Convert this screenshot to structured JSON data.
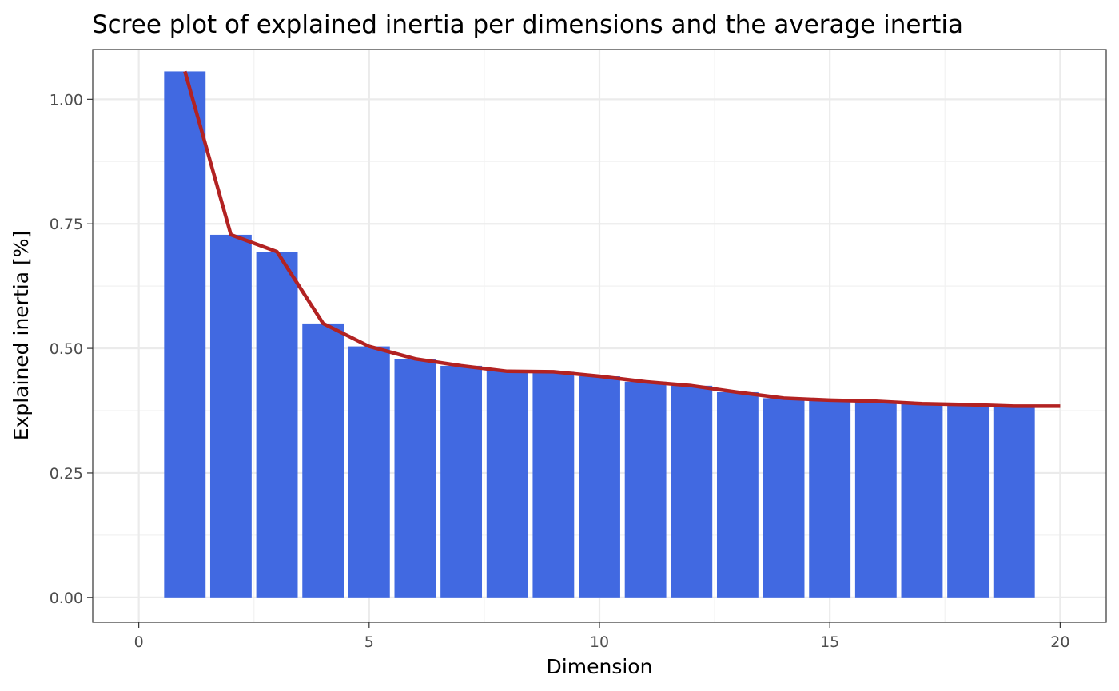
{
  "chart_data": {
    "type": "bar",
    "title": "Scree plot of explained inertia per dimensions and the average inertia",
    "xlabel": "Dimension",
    "ylabel": "Explained inertia [%]",
    "xlim": [
      -1,
      21
    ],
    "ylim": [
      -0.05,
      1.1
    ],
    "x_ticks": [
      0,
      5,
      10,
      15,
      20
    ],
    "x_tick_labels": [
      "0",
      "5",
      "10",
      "15",
      "20"
    ],
    "y_ticks": [
      0,
      0.25,
      0.5,
      0.75,
      1
    ],
    "y_tick_labels": [
      "0.00",
      "0.25",
      "0.50",
      "0.75",
      "1.00"
    ],
    "grid": true,
    "bars": {
      "x": [
        1,
        2,
        3,
        4,
        5,
        6,
        7,
        8,
        9,
        10,
        11,
        12,
        13,
        14,
        15,
        16,
        17,
        18,
        19
      ],
      "values": [
        1.056,
        0.728,
        0.694,
        0.55,
        0.504,
        0.479,
        0.465,
        0.454,
        0.453,
        0.444,
        0.433,
        0.425,
        0.412,
        0.4,
        0.396,
        0.394,
        0.389,
        0.387,
        0.384
      ],
      "color": "#4169E1"
    },
    "line": {
      "x": [
        1,
        2,
        3,
        4,
        5,
        6,
        7,
        8,
        9,
        10,
        11,
        12,
        13,
        14,
        15,
        16,
        17,
        18,
        19,
        20
      ],
      "values": [
        1.056,
        0.728,
        0.694,
        0.55,
        0.504,
        0.479,
        0.465,
        0.454,
        0.453,
        0.444,
        0.433,
        0.425,
        0.412,
        0.4,
        0.396,
        0.394,
        0.389,
        0.387,
        0.384,
        0.384
      ],
      "color": "#B22222"
    }
  }
}
